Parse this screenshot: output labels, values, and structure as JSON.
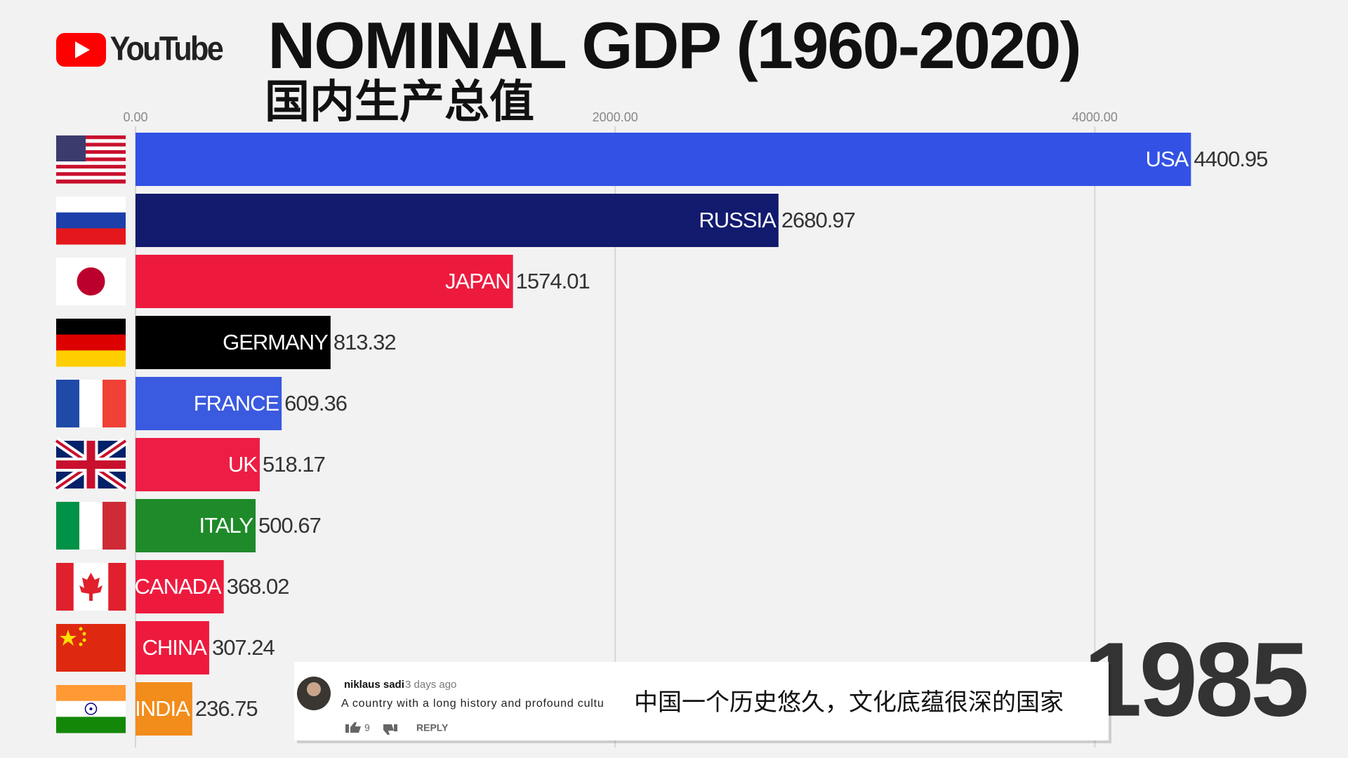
{
  "logo": {
    "text": "YouTube"
  },
  "chart_data": {
    "type": "bar",
    "orientation": "horizontal",
    "title": "NOMINAL GDP (1960-2020)",
    "subtitle": "国内生产总值",
    "categories": [
      "USA",
      "RUSSIA",
      "JAPAN",
      "GERMANY",
      "FRANCE",
      "UK",
      "ITALY",
      "CANADA",
      "CHINA",
      "INDIA"
    ],
    "values": [
      4400.95,
      2680.97,
      1574.01,
      813.32,
      609.36,
      518.17,
      500.67,
      368.02,
      307.24,
      236.75
    ],
    "colors": [
      "#3352e5",
      "#121a6e",
      "#ee1a3e",
      "#000000",
      "#3a5ae0",
      "#ee1d45",
      "#1f8a2a",
      "#ee1a3e",
      "#ee1a3e",
      "#f28c1a"
    ],
    "xlim": [
      0,
      5000
    ],
    "xticks": [
      {
        "value": 0,
        "label": "0.00"
      },
      {
        "value": 2000,
        "label": "2000.00"
      },
      {
        "value": 4000,
        "label": "4000.00"
      }
    ],
    "grid": true,
    "annotation": "1985"
  },
  "comment": {
    "user": "niklaus sadi",
    "time": "3 days ago",
    "text": "A country with a long history and profound cultu",
    "likes": "9",
    "reply": "REPLY"
  },
  "caption": "中国一个历史悠久，文化底蕴很深的国家"
}
